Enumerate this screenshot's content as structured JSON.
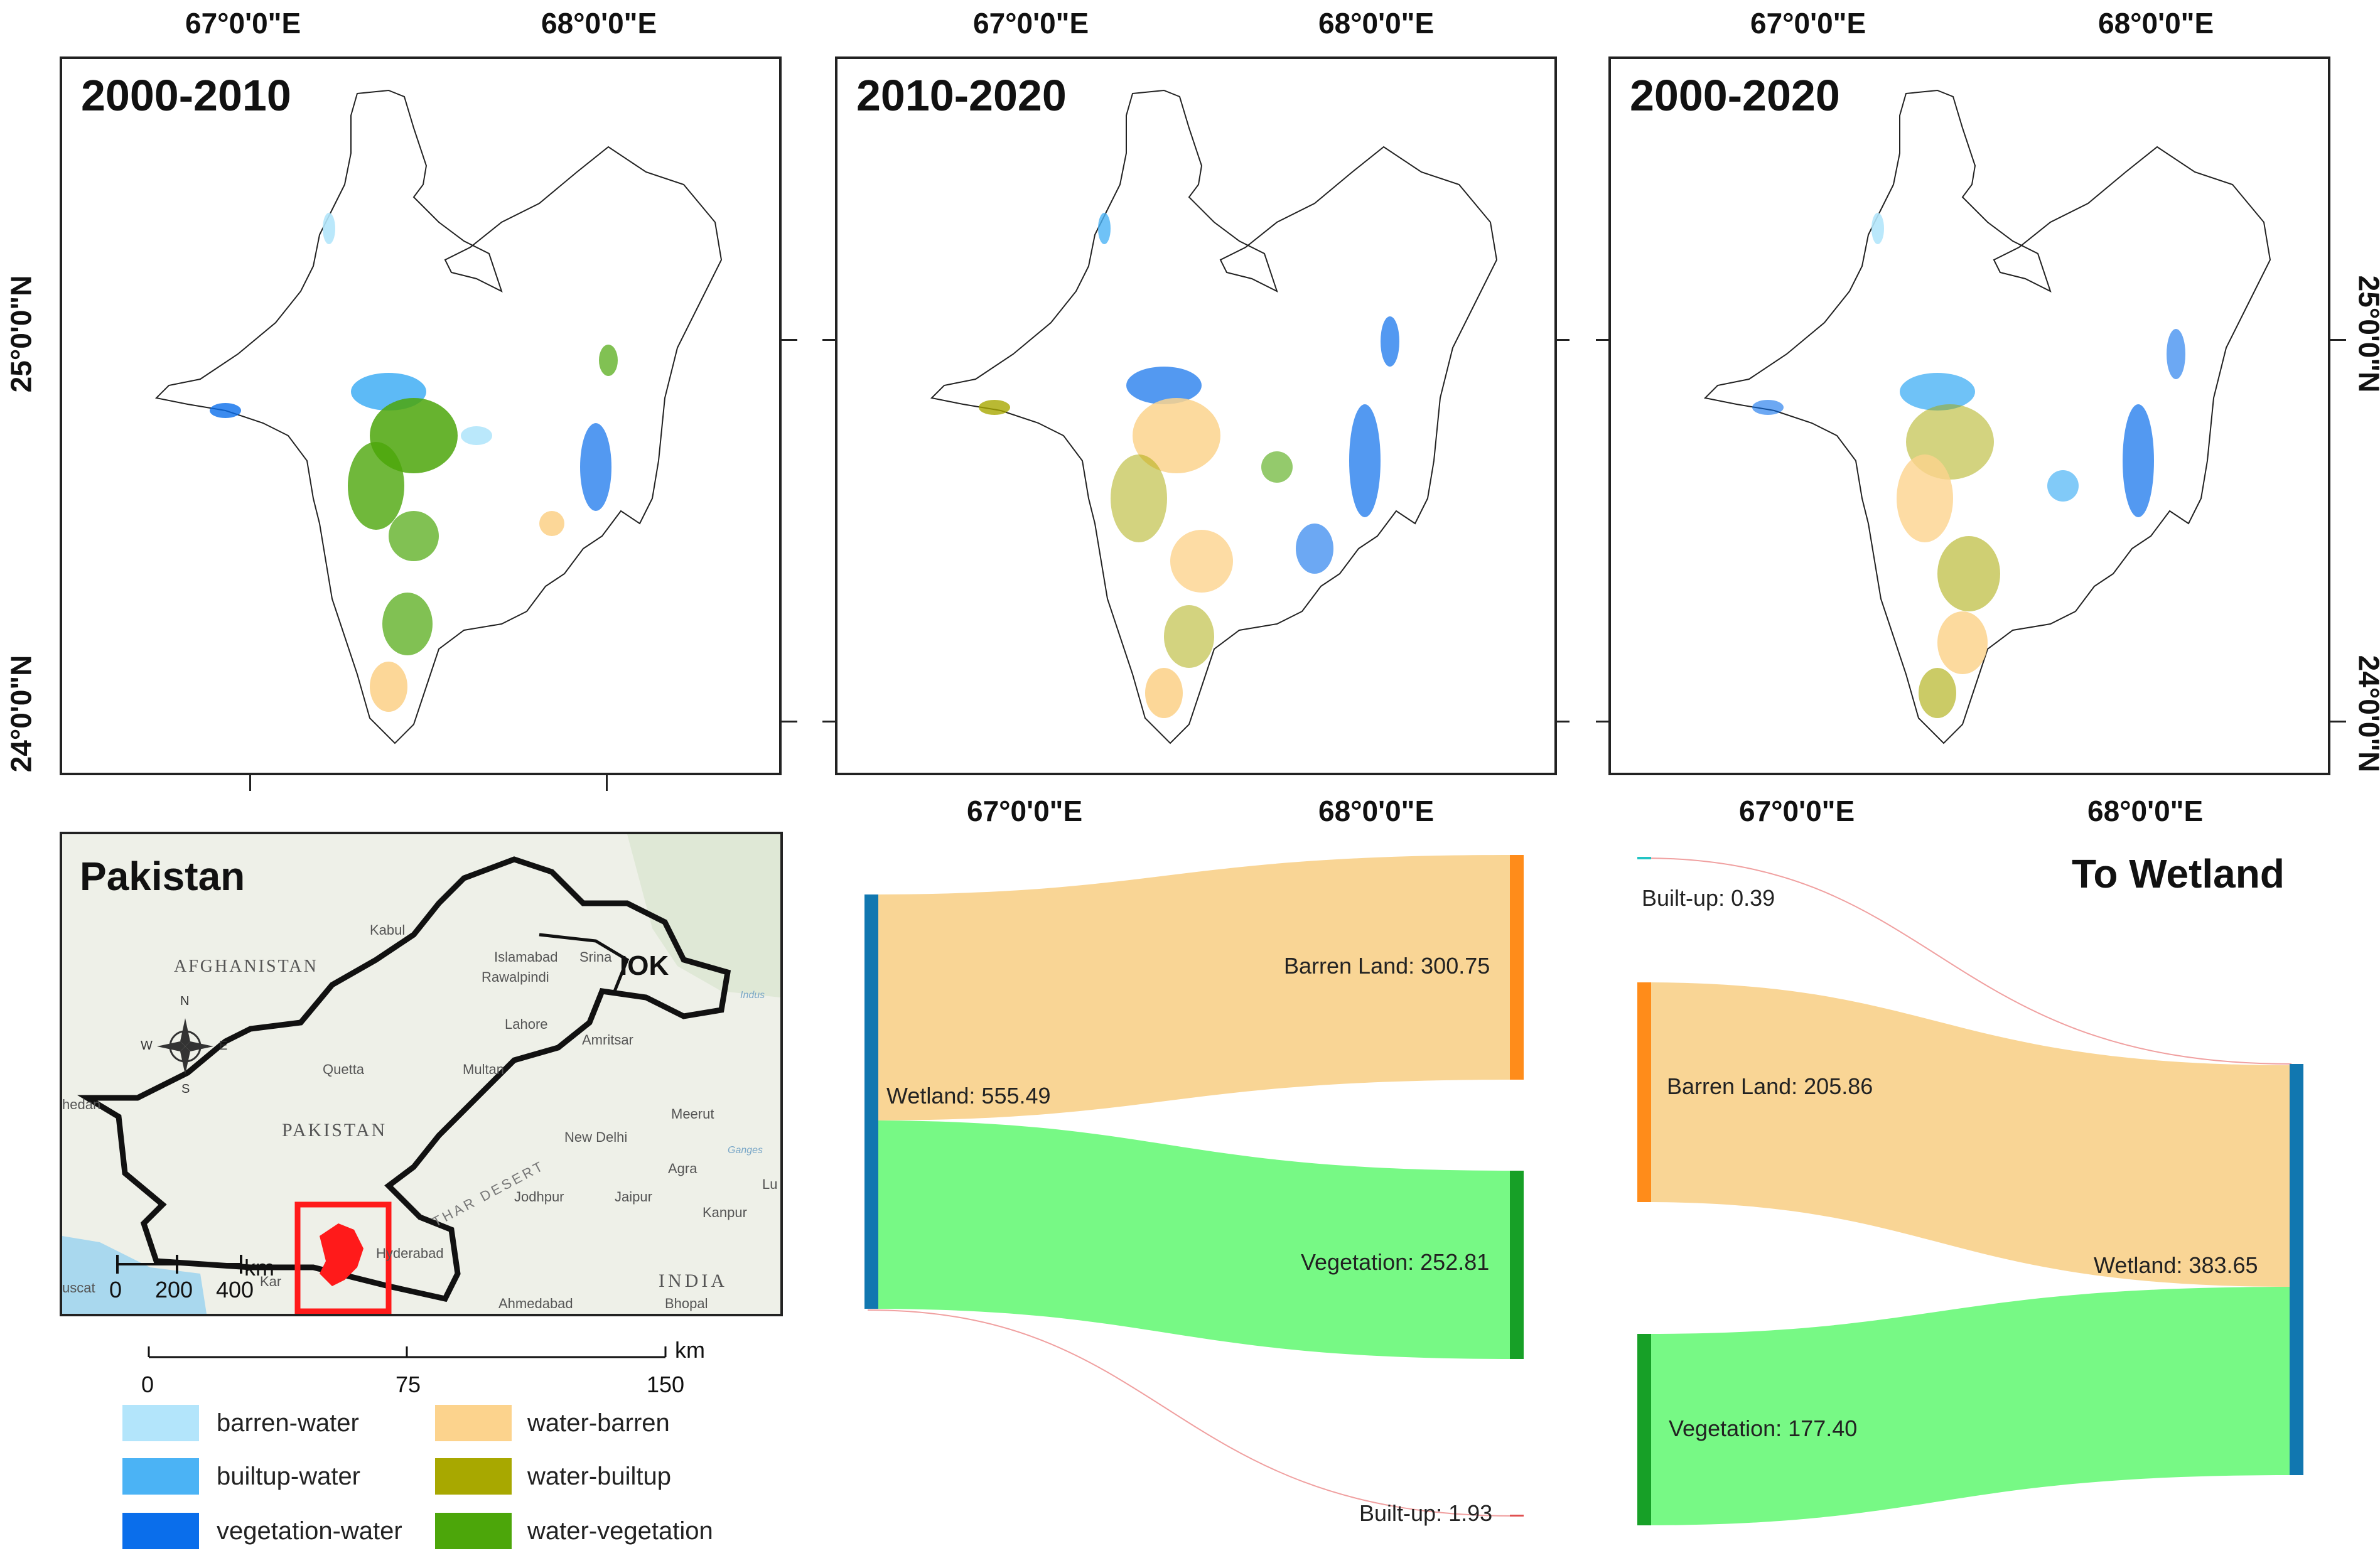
{
  "panels": [
    {
      "title": "2000-2010"
    },
    {
      "title": "2010-2020"
    },
    {
      "title": "2000-2020"
    }
  ],
  "axes": {
    "lon_labels": [
      "67°0'0\"E",
      "68°0'0\"E"
    ],
    "lat_labels": [
      "25°0'0\"N",
      "24°0'0\"N"
    ]
  },
  "inset": {
    "title": "Pakistan",
    "region_label": "IOK",
    "places": [
      "Kabul",
      "AFGHANISTAN",
      "Islamabad",
      "Srina",
      "Rawalpindi",
      "Lahore",
      "Amritsar",
      "Quetta",
      "Multan",
      "hedan",
      "PAKISTAN",
      "New Delhi",
      "Meerut",
      "Agra",
      "THAR DESERT",
      "Jodhpur",
      "Jaipur",
      "Kanpur",
      "Lu",
      "Hyderabad",
      "Kar",
      "INDIA",
      "uscat",
      "Ahmedabad",
      "Bhopal",
      "Indus",
      "Ganges"
    ],
    "compass": {
      "n": "N",
      "s": "S",
      "e": "E",
      "w": "W"
    },
    "scale": {
      "unit": "km",
      "ticks": [
        "0",
        "200",
        "400"
      ]
    }
  },
  "scalebar": {
    "unit": "km",
    "ticks": [
      "0",
      "75",
      "150"
    ]
  },
  "legend": [
    {
      "label": "barren-water",
      "color": "#b3e5fb"
    },
    {
      "label": "water-barren",
      "color": "#fcd38d"
    },
    {
      "label": "builtup-water",
      "color": "#4bb3f5"
    },
    {
      "label": "water-builtup",
      "color": "#a8a800"
    },
    {
      "label": "vegetation-water",
      "color": "#0a6eeb"
    },
    {
      "label": "water-vegetation",
      "color": "#4ca60a"
    }
  ],
  "sankey_from": {
    "source": {
      "label": "Wetland: 555.49",
      "value": 555.49
    },
    "targets": [
      {
        "label": "Barren Land: 300.75",
        "value": 300.75
      },
      {
        "label": "Vegetation: 252.81",
        "value": 252.81
      },
      {
        "label": "Built-up: 1.93",
        "value": 1.93
      }
    ]
  },
  "sankey_to": {
    "title": "To Wetland",
    "sources": [
      {
        "label": "Built-up: 0.39",
        "value": 0.39
      },
      {
        "label": "Barren Land: 205.86",
        "value": 205.86
      },
      {
        "label": "Vegetation: 177.40",
        "value": 177.4
      }
    ],
    "target": {
      "label": "Wetland: 383.65",
      "value": 383.65
    }
  },
  "colors": {
    "wetland": "#1177b0",
    "barren_node": "#ff8c1a",
    "vegetation_node": "#17a027",
    "builtup_node": "#e05050",
    "barren_flow": "#f9d595",
    "vegetation_flow": "#77f985",
    "builtup_flow": "#f0a0a0",
    "builtup_node_to": "#22c4c4"
  }
}
